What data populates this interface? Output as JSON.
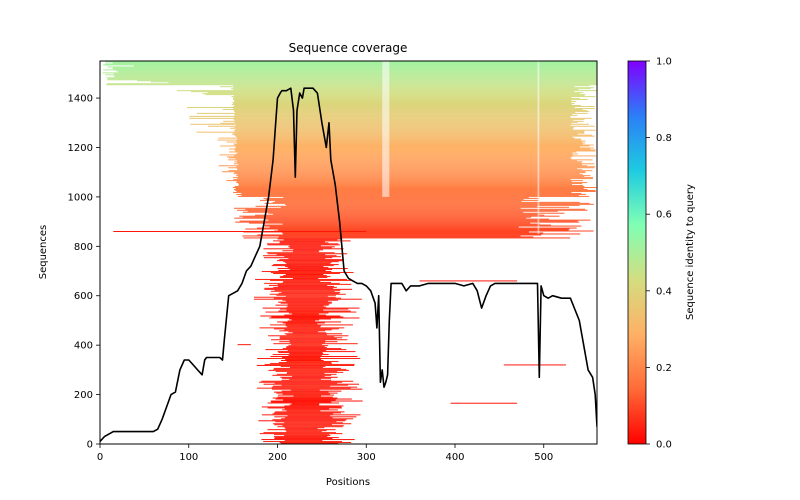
{
  "chart_data": {
    "type": "heatmap",
    "title": "Sequence coverage",
    "xlabel": "Positions",
    "ylabel": "Sequences",
    "xlim": [
      0,
      560
    ],
    "ylim": [
      0,
      1550
    ],
    "xticks": [
      0,
      100,
      200,
      300,
      400,
      500
    ],
    "xtick_labels": [
      "0",
      "100",
      "200",
      "300",
      "400",
      "500"
    ],
    "yticks": [
      0,
      200,
      400,
      600,
      800,
      1000,
      1200,
      1400
    ],
    "ytick_labels": [
      "0",
      "200",
      "400",
      "600",
      "800",
      "1000",
      "1200",
      "1400"
    ],
    "grid": false,
    "colorbar": {
      "label": "Sequence identity to query",
      "colormap": "rainbow_r",
      "range": [
        0,
        1
      ],
      "ticks": [
        0.0,
        0.2,
        0.4,
        0.6,
        0.8,
        1.0
      ],
      "tick_labels": [
        "0.0",
        "0.2",
        "0.4",
        "0.6",
        "0.8",
        "1.0"
      ],
      "stops": [
        "#ff0000",
        "#ff6a36",
        "#ffb065",
        "#d4dd80",
        "#80ffb4",
        "#1ecbe1",
        "#2c7ef7",
        "#8000ff"
      ]
    },
    "alignment_blocks": [
      {
        "desc": "high identity top band",
        "seq_range": [
          1450,
          1550
        ],
        "pos_range": [
          0,
          560
        ],
        "identity": 0.5
      },
      {
        "desc": "medium identity band",
        "seq_range": [
          1000,
          1450
        ],
        "pos_range": [
          150,
          560
        ],
        "identity": 0.25
      },
      {
        "desc": "low identity band",
        "seq_range": [
          830,
          1000
        ],
        "pos_range": [
          150,
          560
        ],
        "identity": 0.12
      },
      {
        "desc": "low identity central block",
        "seq_range": [
          0,
          830
        ],
        "pos_range": [
          185,
          280
        ],
        "identity": 0.03
      }
    ],
    "series": [
      {
        "name": "coverage",
        "color": "#000000",
        "x": [
          0,
          5,
          10,
          15,
          20,
          40,
          60,
          65,
          70,
          75,
          80,
          85,
          90,
          95,
          100,
          105,
          110,
          115,
          118,
          120,
          125,
          130,
          135,
          138,
          140,
          145,
          150,
          155,
          160,
          165,
          170,
          175,
          180,
          185,
          190,
          195,
          198,
          200,
          203,
          205,
          210,
          215,
          218,
          220,
          222,
          225,
          228,
          230,
          235,
          240,
          245,
          250,
          255,
          258,
          260,
          265,
          270,
          275,
          280,
          285,
          290,
          295,
          300,
          305,
          310,
          312,
          314,
          316,
          318,
          320,
          322,
          324,
          326,
          328,
          330,
          340,
          345,
          350,
          360,
          370,
          380,
          390,
          400,
          410,
          420,
          425,
          430,
          435,
          440,
          445,
          450,
          460,
          470,
          480,
          490,
          493,
          495,
          497,
          500,
          505,
          510,
          520,
          530,
          540,
          545,
          550,
          555,
          558,
          560
        ],
        "y": [
          10,
          30,
          40,
          50,
          50,
          50,
          50,
          60,
          100,
          150,
          200,
          210,
          300,
          340,
          340,
          320,
          300,
          280,
          340,
          350,
          350,
          350,
          350,
          340,
          420,
          600,
          610,
          620,
          650,
          700,
          720,
          760,
          800,
          900,
          1000,
          1150,
          1300,
          1400,
          1420,
          1430,
          1430,
          1440,
          1350,
          1080,
          1350,
          1420,
          1400,
          1440,
          1440,
          1440,
          1420,
          1300,
          1200,
          1300,
          1150,
          1050,
          900,
          700,
          670,
          660,
          650,
          650,
          640,
          620,
          570,
          470,
          600,
          250,
          300,
          230,
          250,
          280,
          500,
          650,
          650,
          650,
          620,
          640,
          640,
          650,
          650,
          650,
          650,
          640,
          650,
          620,
          550,
          600,
          640,
          650,
          650,
          650,
          650,
          650,
          650,
          650,
          270,
          640,
          600,
          590,
          600,
          590,
          590,
          500,
          400,
          300,
          270,
          200,
          70
        ]
      }
    ]
  }
}
